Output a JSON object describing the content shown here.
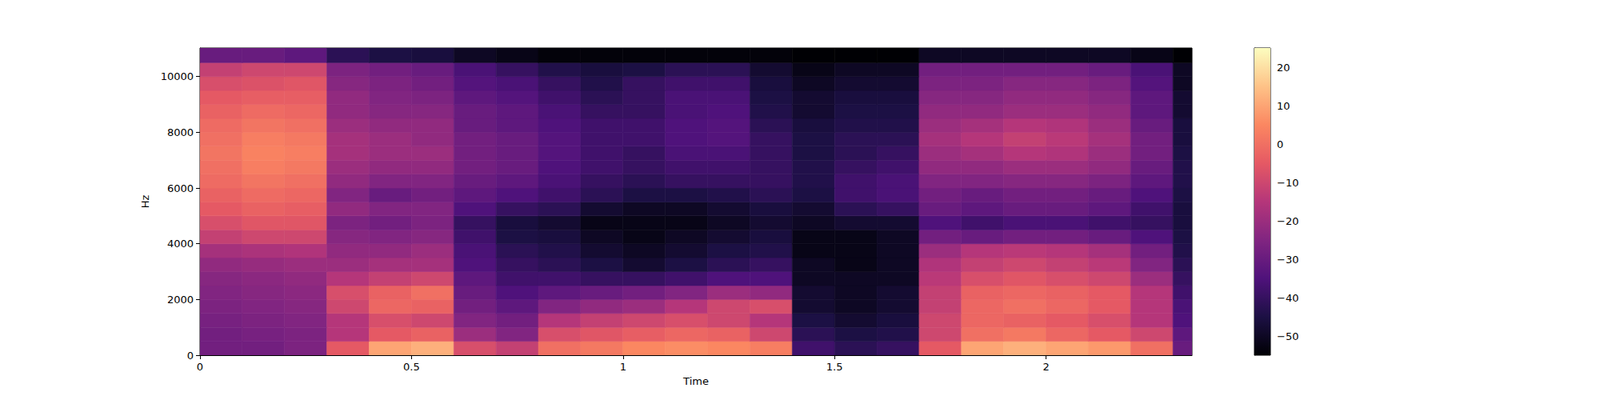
{
  "chart_data": {
    "type": "heatmap",
    "x_label": "Time",
    "y_label": "Hz",
    "xlim": [
      0,
      2.345
    ],
    "ylim": [
      0,
      11025
    ],
    "xticks": [
      0,
      0.5,
      1,
      1.5,
      2
    ],
    "yticks": [
      0,
      2000,
      4000,
      6000,
      8000,
      10000
    ],
    "x_bins": [
      0,
      0.1,
      0.2,
      0.3,
      0.4,
      0.5,
      0.6,
      0.7,
      0.8,
      0.9,
      1.0,
      1.1,
      1.2,
      1.3,
      1.4,
      1.5,
      1.6,
      1.7,
      1.8,
      1.9,
      2.0,
      2.1,
      2.2,
      2.3,
      2.345
    ],
    "y_bins": [
      0,
      500,
      1000,
      1500,
      2000,
      2500,
      3000,
      3500,
      4000,
      4500,
      5000,
      5500,
      6000,
      6500,
      7000,
      7500,
      8000,
      8500,
      9000,
      9500,
      10000,
      10500,
      11025
    ],
    "cells": [
      [
        -28,
        -28,
        -26,
        -5,
        10,
        12,
        -8,
        -12,
        0,
        2,
        5,
        6,
        5,
        3,
        -38,
        -42,
        -40,
        -5,
        10,
        12,
        10,
        8,
        0,
        -30
      ],
      [
        -28,
        -27,
        -26,
        -15,
        -5,
        -3,
        -20,
        -25,
        -8,
        -6,
        -4,
        -2,
        -3,
        -10,
        -42,
        -45,
        -44,
        -10,
        0,
        2,
        -2,
        -5,
        -10,
        -32
      ],
      [
        -27,
        -26,
        -25,
        -15,
        -8,
        -10,
        -25,
        -28,
        -15,
        -12,
        -10,
        -8,
        -10,
        -15,
        -45,
        -48,
        -46,
        -10,
        -2,
        -3,
        -5,
        -8,
        -15,
        -35
      ],
      [
        -26,
        -25,
        -24,
        -10,
        -2,
        -3,
        -28,
        -32,
        -25,
        -22,
        -20,
        -15,
        -10,
        -8,
        -48,
        -50,
        -48,
        -12,
        -2,
        0,
        -2,
        -5,
        -15,
        -36
      ],
      [
        -25,
        -24,
        -23,
        -8,
        -3,
        0,
        -30,
        -35,
        -32,
        -30,
        -28,
        -25,
        -20,
        -22,
        -48,
        -50,
        -48,
        -12,
        -3,
        -2,
        -3,
        -5,
        -15,
        -38
      ],
      [
        -24,
        -23,
        -22,
        -15,
        -12,
        -10,
        -32,
        -38,
        -38,
        -40,
        -40,
        -38,
        -35,
        -35,
        -50,
        -50,
        -50,
        -14,
        -8,
        -6,
        -8,
        -10,
        -20,
        -40
      ],
      [
        -22,
        -21,
        -20,
        -20,
        -18,
        -18,
        -35,
        -40,
        -42,
        -45,
        -48,
        -45,
        -42,
        -40,
        -50,
        -52,
        -50,
        -16,
        -12,
        -10,
        -12,
        -14,
        -25,
        -42
      ],
      [
        -18,
        -17,
        -16,
        -22,
        -22,
        -20,
        -36,
        -42,
        -44,
        -48,
        -50,
        -48,
        -45,
        -44,
        -52,
        -52,
        -50,
        -20,
        -15,
        -14,
        -15,
        -18,
        -28,
        -44
      ],
      [
        -12,
        -10,
        -10,
        -24,
        -25,
        -24,
        -38,
        -45,
        -46,
        -50,
        -52,
        -50,
        -48,
        -46,
        -52,
        -52,
        -50,
        -28,
        -30,
        -28,
        -28,
        -30,
        -35,
        -45
      ],
      [
        -8,
        -6,
        -6,
        -26,
        -28,
        -26,
        -40,
        -46,
        -48,
        -52,
        -52,
        -52,
        -50,
        -48,
        -50,
        -48,
        -48,
        -35,
        -38,
        -36,
        -36,
        -38,
        -40,
        -46
      ],
      [
        -5,
        -3,
        -4,
        -22,
        -25,
        -25,
        -35,
        -40,
        -42,
        -48,
        -50,
        -50,
        -48,
        -46,
        -48,
        -42,
        -40,
        -30,
        -32,
        -30,
        -30,
        -32,
        -38,
        -46
      ],
      [
        -3,
        -1,
        -2,
        -25,
        -30,
        -28,
        -32,
        -35,
        -38,
        -42,
        -45,
        -45,
        -44,
        -42,
        -45,
        -38,
        -36,
        -28,
        -30,
        -28,
        -28,
        -30,
        -35,
        -45
      ],
      [
        -1,
        1,
        0,
        -22,
        -25,
        -25,
        -30,
        -32,
        -36,
        -40,
        -42,
        -40,
        -40,
        -40,
        -44,
        -38,
        -36,
        -25,
        -25,
        -24,
        -24,
        -26,
        -32,
        -44
      ],
      [
        0,
        3,
        2,
        -20,
        -22,
        -22,
        -28,
        -30,
        -35,
        -38,
        -40,
        -38,
        -38,
        -40,
        -44,
        -40,
        -38,
        -22,
        -22,
        -20,
        -20,
        -22,
        -30,
        -44
      ],
      [
        1,
        4,
        3,
        -18,
        -20,
        -20,
        -28,
        -30,
        -34,
        -38,
        -40,
        -36,
        -36,
        -40,
        -45,
        -42,
        -40,
        -20,
        -18,
        -15,
        -16,
        -20,
        -28,
        -45
      ],
      [
        0,
        3,
        2,
        -18,
        -20,
        -22,
        -28,
        -30,
        -34,
        -38,
        -38,
        -35,
        -34,
        -40,
        -45,
        -42,
        -42,
        -18,
        -15,
        -12,
        -14,
        -18,
        -28,
        -46
      ],
      [
        -1,
        1,
        0,
        -20,
        -22,
        -22,
        -30,
        -32,
        -35,
        -38,
        -38,
        -35,
        -34,
        -42,
        -46,
        -44,
        -44,
        -20,
        -18,
        -15,
        -16,
        -20,
        -30,
        -46
      ],
      [
        -3,
        -1,
        -2,
        -22,
        -24,
        -24,
        -30,
        -32,
        -36,
        -40,
        -40,
        -36,
        -35,
        -44,
        -48,
        -45,
        -45,
        -22,
        -22,
        -20,
        -20,
        -22,
        -32,
        -48
      ],
      [
        -5,
        -4,
        -4,
        -22,
        -25,
        -26,
        -32,
        -34,
        -38,
        -42,
        -40,
        -36,
        -36,
        -45,
        -48,
        -46,
        -46,
        -24,
        -24,
        -22,
        -22,
        -24,
        -32,
        -48
      ],
      [
        -8,
        -7,
        -6,
        -24,
        -26,
        -28,
        -34,
        -36,
        -40,
        -44,
        -40,
        -38,
        -38,
        -46,
        -50,
        -48,
        -48,
        -26,
        -26,
        -24,
        -24,
        -26,
        -34,
        -50
      ],
      [
        -12,
        -10,
        -10,
        -26,
        -28,
        -30,
        -36,
        -40,
        -44,
        -46,
        -45,
        -42,
        -42,
        -48,
        -52,
        -50,
        -50,
        -28,
        -28,
        -28,
        -28,
        -30,
        -36,
        -50
      ],
      [
        -30,
        -30,
        -32,
        -42,
        -45,
        -46,
        -50,
        -52,
        -54,
        -54,
        -54,
        -54,
        -54,
        -54,
        -55,
        -55,
        -55,
        -50,
        -50,
        -50,
        -50,
        -50,
        -52,
        -55
      ]
    ],
    "colorbar": {
      "range": [
        -55,
        25
      ],
      "ticks": [
        {
          "value": -50,
          "label": "−50"
        },
        {
          "value": -40,
          "label": "−40"
        },
        {
          "value": -30,
          "label": "−30"
        },
        {
          "value": -20,
          "label": "−20"
        },
        {
          "value": -10,
          "label": "−10"
        },
        0,
        10,
        20
      ]
    }
  }
}
